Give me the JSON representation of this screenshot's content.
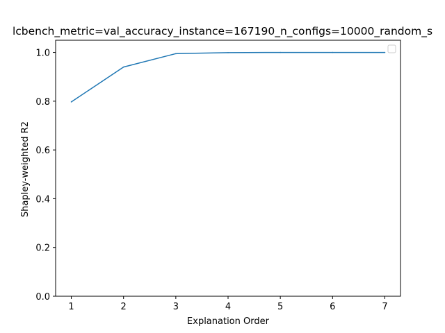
{
  "chart_data": {
    "type": "line",
    "title": "lcbench_metric=val_accuracy_instance=167190_n_configs=10000_random_s",
    "xlabel": "Explanation Order",
    "ylabel": "Shapley-weighted R2",
    "x": [
      1,
      2,
      3,
      4,
      5,
      6,
      7
    ],
    "series": [
      {
        "values": [
          0.797,
          0.94,
          0.995,
          0.999,
          1.0,
          1.0,
          1.0
        ]
      }
    ],
    "x_ticks": [
      "1",
      "2",
      "3",
      "4",
      "5",
      "6",
      "7"
    ],
    "y_ticks": [
      "0.0",
      "0.2",
      "0.4",
      "0.6",
      "0.8",
      "1.0"
    ],
    "xlim": [
      0.7,
      7.3
    ],
    "ylim": [
      0.0,
      1.05
    ],
    "grid": false,
    "legend": "top-right, empty",
    "colors": {
      "line": "#1f77b4",
      "legend_border": "#cccccc"
    }
  }
}
